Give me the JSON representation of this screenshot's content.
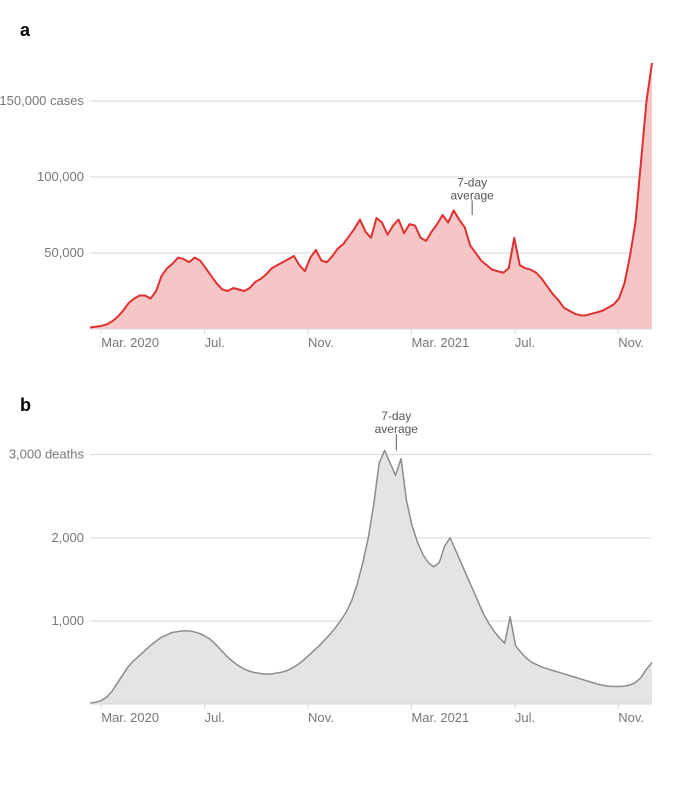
{
  "panels": {
    "a": {
      "label": "a",
      "type": "area",
      "ylabel_inline": "150,000 cases",
      "y_ticks": [
        {
          "v": 50000,
          "label": "50,000"
        },
        {
          "v": 100000,
          "label": "100,000"
        },
        {
          "v": 150000,
          "label": "150,000 cases"
        }
      ],
      "ylim": [
        0,
        175000
      ],
      "x_ticks": [
        "Mar. 2020",
        "Jul.",
        "Nov.",
        "Mar. 2021",
        "Jul.",
        "Nov."
      ],
      "line_color": "#e03030",
      "fill_color": "#f4c6c6",
      "grid_color": "#d9d9d9",
      "axis_text_color": "#777777",
      "annot_color": "#555555",
      "background_color": "#ffffff",
      "line_width": 2,
      "label_fontsize": 13,
      "annotation": {
        "text": "7-day\naverage",
        "x": 0.68,
        "yv": 82000,
        "tick_to_yv": 75000
      },
      "values": [
        1000,
        1500,
        2000,
        3000,
        5000,
        8000,
        12000,
        17000,
        20000,
        22000,
        22000,
        20000,
        25000,
        35000,
        40000,
        43000,
        47000,
        46000,
        44000,
        47000,
        45000,
        40000,
        35000,
        30000,
        26000,
        25000,
        27000,
        26000,
        25000,
        27000,
        31000,
        33000,
        36000,
        40000,
        42000,
        44000,
        46000,
        48000,
        42000,
        38000,
        47000,
        52000,
        45000,
        44000,
        48000,
        53000,
        56000,
        61000,
        66000,
        72000,
        64000,
        60000,
        73000,
        70000,
        62000,
        68000,
        72000,
        63000,
        69000,
        68000,
        60000,
        58000,
        64000,
        69000,
        75000,
        70000,
        78000,
        72000,
        67000,
        55000,
        50000,
        45000,
        42000,
        39000,
        38000,
        37000,
        40000,
        60000,
        42000,
        40000,
        39000,
        37000,
        33000,
        28000,
        23000,
        19000,
        14000,
        12000,
        10000,
        9000,
        9000,
        10000,
        11000,
        12000,
        14000,
        16000,
        20000,
        30000,
        48000,
        70000,
        110000,
        150000,
        175000
      ]
    },
    "b": {
      "label": "b",
      "type": "area",
      "y_ticks": [
        {
          "v": 1000,
          "label": "1,000"
        },
        {
          "v": 2000,
          "label": "2,000"
        },
        {
          "v": 3000,
          "label": "3,000 deaths"
        }
      ],
      "ylim": [
        0,
        3200
      ],
      "x_ticks": [
        "Mar. 2020",
        "Jul.",
        "Nov.",
        "Mar. 2021",
        "Jul.",
        "Nov."
      ],
      "line_color": "#8c8c8c",
      "fill_color": "#e4e4e4",
      "grid_color": "#d9d9d9",
      "axis_text_color": "#777777",
      "annot_color": "#555555",
      "background_color": "#ffffff",
      "line_width": 1.5,
      "label_fontsize": 13,
      "annotation": {
        "text": "7-day\naverage",
        "x": 0.545,
        "yv": 3200,
        "tick_to_yv": 3050
      },
      "values": [
        10,
        20,
        40,
        80,
        150,
        250,
        350,
        450,
        520,
        580,
        640,
        700,
        750,
        800,
        830,
        860,
        870,
        880,
        880,
        870,
        850,
        820,
        780,
        720,
        650,
        580,
        520,
        470,
        430,
        400,
        380,
        370,
        360,
        360,
        370,
        380,
        400,
        430,
        470,
        520,
        580,
        640,
        700,
        770,
        840,
        920,
        1010,
        1110,
        1250,
        1450,
        1700,
        2000,
        2400,
        2900,
        3050,
        2900,
        2750,
        2950,
        2450,
        2150,
        1950,
        1800,
        1700,
        1650,
        1700,
        1900,
        2000,
        1850,
        1700,
        1550,
        1400,
        1250,
        1100,
        980,
        880,
        800,
        730,
        1050,
        700,
        620,
        550,
        500,
        470,
        440,
        420,
        400,
        380,
        360,
        340,
        320,
        300,
        280,
        260,
        240,
        225,
        215,
        210,
        210,
        215,
        230,
        260,
        320,
        420,
        500
      ]
    }
  }
}
